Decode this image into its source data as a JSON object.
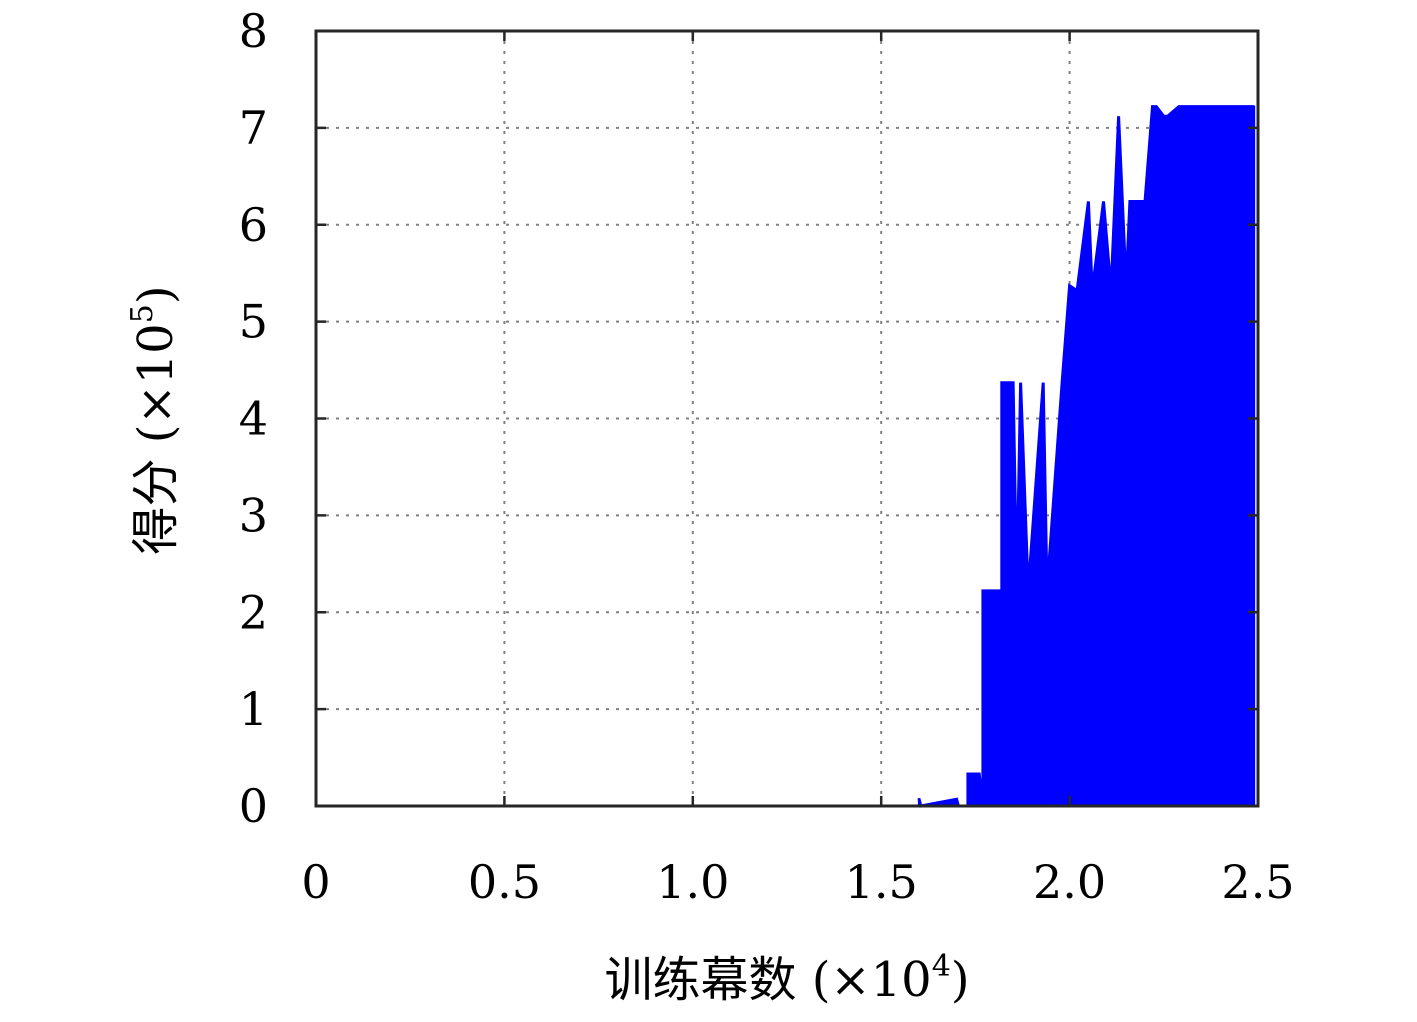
{
  "chart_data": {
    "type": "area",
    "xlabel": "训练幕数 (×10",
    "xlabel_exp": "4",
    "xlabel_close": ")",
    "ylabel": "得分 (×10",
    "ylabel_exp": "5",
    "ylabel_close": ")",
    "xlim": [
      0,
      2.5
    ],
    "ylim": [
      0,
      8
    ],
    "xticks": [
      0,
      0.5,
      1.0,
      1.5,
      2.0,
      2.5
    ],
    "xtick_labels": [
      "0",
      "0.5",
      "1.0",
      "1.5",
      "2.0",
      "2.5"
    ],
    "yticks": [
      0,
      1,
      2,
      3,
      4,
      5,
      6,
      7,
      8
    ],
    "ytick_labels": [
      "0",
      "1",
      "2",
      "3",
      "4",
      "5",
      "6",
      "7",
      "8"
    ],
    "grid": true,
    "colors": {
      "series": "#0000ff",
      "axis": "#262626",
      "grid": "#808080"
    },
    "series": [
      {
        "x": [
          1.6,
          1.605,
          1.7,
          1.705,
          1.73,
          1.73,
          1.76,
          1.77,
          1.77,
          1.82,
          1.82,
          1.85,
          1.86,
          1.87,
          1.89,
          1.93,
          1.94,
          1.98,
          1.98,
          2.0,
          2.0,
          2.02,
          2.02,
          2.05,
          2.06,
          2.09,
          2.11,
          2.13,
          2.13,
          2.15,
          2.16,
          2.2,
          2.22,
          2.23,
          2.23,
          2.25,
          2.26,
          2.29,
          2.3,
          2.35,
          2.4,
          2.45,
          2.49
        ],
        "y": [
          0.08,
          0.0,
          0.07,
          0.0,
          0.0,
          0.33,
          0.33,
          0.0,
          2.22,
          2.22,
          4.37,
          4.37,
          2.22,
          4.37,
          2.22,
          4.37,
          2.22,
          4.37,
          4.37,
          5.37,
          5.37,
          5.32,
          5.32,
          6.24,
          5.32,
          6.24,
          5.32,
          7.12,
          7.12,
          5.37,
          6.24,
          6.24,
          7.22,
          7.22,
          7.22,
          7.12,
          7.12,
          7.22,
          7.22,
          7.22,
          7.22,
          7.22,
          7.22
        ]
      }
    ]
  }
}
